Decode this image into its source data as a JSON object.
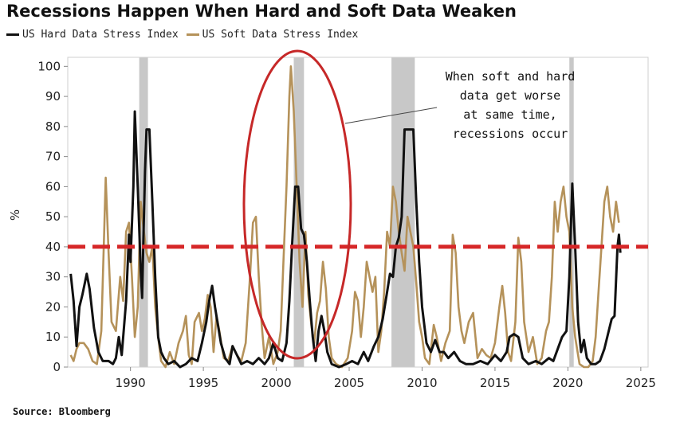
{
  "header": {
    "title": "Recessions Happen When Hard and Soft Data Weaken"
  },
  "source": "Source: Bloomberg",
  "annotation": {
    "lines": [
      "When soft and hard",
      "data get worse",
      "at same time,",
      "recessions occur"
    ]
  },
  "colors": {
    "hard": "#111111",
    "soft": "#b5925a",
    "threshold": "#d62728",
    "ellipse": "#c62828",
    "recession": "#c8c8c8"
  },
  "chart_data": {
    "type": "line",
    "title": "Recessions Happen When Hard and Soft Data Weaken",
    "xlabel": "",
    "ylabel": "%",
    "xlim": [
      1985.7,
      2025.5
    ],
    "ylim": [
      0,
      103
    ],
    "xticks": [
      1990,
      1995,
      2000,
      2005,
      2010,
      2015,
      2020,
      2025
    ],
    "yticks": [
      0,
      10,
      20,
      30,
      40,
      50,
      60,
      70,
      80,
      90,
      100
    ],
    "grid": false,
    "legend_position": "top-left",
    "threshold": 40,
    "recession_bands": [
      [
        1990.6,
        1991.2
      ],
      [
        2001.2,
        2001.9
      ],
      [
        2007.9,
        2009.5
      ],
      [
        2020.1,
        2020.4
      ]
    ],
    "series": [
      {
        "name": "US Hard Data Stress Index",
        "points": [
          [
            1985.9,
            31
          ],
          [
            1986.1,
            22
          ],
          [
            1986.3,
            7
          ],
          [
            1986.5,
            20
          ],
          [
            1986.7,
            24
          ],
          [
            1987.0,
            31
          ],
          [
            1987.2,
            26
          ],
          [
            1987.5,
            13
          ],
          [
            1987.8,
            5
          ],
          [
            1988.1,
            2
          ],
          [
            1988.5,
            2
          ],
          [
            1988.8,
            1
          ],
          [
            1989.0,
            3
          ],
          [
            1989.2,
            10
          ],
          [
            1989.4,
            4
          ],
          [
            1989.7,
            22
          ],
          [
            1989.9,
            44
          ],
          [
            1990.0,
            35
          ],
          [
            1990.2,
            60
          ],
          [
            1990.3,
            85
          ],
          [
            1990.5,
            60
          ],
          [
            1990.7,
            32
          ],
          [
            1990.8,
            23
          ],
          [
            1990.9,
            45
          ],
          [
            1991.0,
            65
          ],
          [
            1991.1,
            79
          ],
          [
            1991.3,
            79
          ],
          [
            1991.5,
            55
          ],
          [
            1991.7,
            30
          ],
          [
            1991.9,
            10
          ],
          [
            1992.1,
            5
          ],
          [
            1992.3,
            3
          ],
          [
            1992.6,
            1
          ],
          [
            1993.0,
            2
          ],
          [
            1993.4,
            0
          ],
          [
            1993.8,
            1
          ],
          [
            1994.2,
            3
          ],
          [
            1994.6,
            2
          ],
          [
            1994.9,
            8
          ],
          [
            1995.2,
            15
          ],
          [
            1995.4,
            22
          ],
          [
            1995.6,
            27
          ],
          [
            1995.8,
            20
          ],
          [
            1996.0,
            14
          ],
          [
            1996.2,
            8
          ],
          [
            1996.5,
            3
          ],
          [
            1996.8,
            1
          ],
          [
            1997.0,
            7
          ],
          [
            1997.3,
            4
          ],
          [
            1997.6,
            1
          ],
          [
            1998.0,
            2
          ],
          [
            1998.4,
            1
          ],
          [
            1998.8,
            3
          ],
          [
            1999.2,
            1
          ],
          [
            1999.5,
            3
          ],
          [
            1999.8,
            8
          ],
          [
            2000.1,
            3
          ],
          [
            2000.4,
            2
          ],
          [
            2000.7,
            8
          ],
          [
            2000.9,
            22
          ],
          [
            2001.1,
            42
          ],
          [
            2001.3,
            60
          ],
          [
            2001.5,
            60
          ],
          [
            2001.7,
            46
          ],
          [
            2001.9,
            44
          ],
          [
            2002.1,
            35
          ],
          [
            2002.3,
            22
          ],
          [
            2002.5,
            10
          ],
          [
            2002.7,
            2
          ],
          [
            2002.9,
            12
          ],
          [
            2003.1,
            17
          ],
          [
            2003.3,
            12
          ],
          [
            2003.5,
            5
          ],
          [
            2003.8,
            1
          ],
          [
            2004.3,
            0
          ],
          [
            2004.8,
            1
          ],
          [
            2005.2,
            2
          ],
          [
            2005.6,
            1
          ],
          [
            2006.0,
            5
          ],
          [
            2006.3,
            2
          ],
          [
            2006.7,
            7
          ],
          [
            2007.0,
            10
          ],
          [
            2007.3,
            16
          ],
          [
            2007.6,
            25
          ],
          [
            2007.8,
            31
          ],
          [
            2008.0,
            30
          ],
          [
            2008.2,
            40
          ],
          [
            2008.4,
            43
          ],
          [
            2008.6,
            50
          ],
          [
            2008.8,
            79
          ],
          [
            2009.0,
            79
          ],
          [
            2009.2,
            79
          ],
          [
            2009.4,
            79
          ],
          [
            2009.6,
            55
          ],
          [
            2009.8,
            35
          ],
          [
            2010.0,
            20
          ],
          [
            2010.3,
            8
          ],
          [
            2010.6,
            5
          ],
          [
            2010.9,
            9
          ],
          [
            2011.2,
            5
          ],
          [
            2011.5,
            5
          ],
          [
            2011.8,
            3
          ],
          [
            2012.2,
            5
          ],
          [
            2012.6,
            2
          ],
          [
            2013.0,
            1
          ],
          [
            2013.5,
            1
          ],
          [
            2014.0,
            2
          ],
          [
            2014.5,
            1
          ],
          [
            2015.0,
            4
          ],
          [
            2015.4,
            2
          ],
          [
            2015.8,
            5
          ],
          [
            2016.0,
            10
          ],
          [
            2016.3,
            11
          ],
          [
            2016.6,
            10
          ],
          [
            2016.9,
            3
          ],
          [
            2017.3,
            1
          ],
          [
            2017.8,
            2
          ],
          [
            2018.2,
            1
          ],
          [
            2018.7,
            3
          ],
          [
            2019.0,
            2
          ],
          [
            2019.3,
            6
          ],
          [
            2019.6,
            10
          ],
          [
            2019.9,
            12
          ],
          [
            2020.1,
            30
          ],
          [
            2020.3,
            61
          ],
          [
            2020.5,
            40
          ],
          [
            2020.7,
            15
          ],
          [
            2020.9,
            5
          ],
          [
            2021.1,
            9
          ],
          [
            2021.3,
            3
          ],
          [
            2021.6,
            1
          ],
          [
            2021.9,
            1
          ],
          [
            2022.2,
            2
          ],
          [
            2022.5,
            6
          ],
          [
            2022.8,
            12
          ],
          [
            2023.0,
            16
          ],
          [
            2023.2,
            17
          ],
          [
            2023.4,
            40
          ],
          [
            2023.5,
            44
          ],
          [
            2023.6,
            38
          ]
        ]
      },
      {
        "name": "US Soft Data Stress Index",
        "points": [
          [
            1985.9,
            4
          ],
          [
            1986.1,
            2
          ],
          [
            1986.3,
            6
          ],
          [
            1986.5,
            8
          ],
          [
            1986.8,
            8
          ],
          [
            1987.1,
            6
          ],
          [
            1987.4,
            2
          ],
          [
            1987.7,
            1
          ],
          [
            1988.0,
            12
          ],
          [
            1988.2,
            45
          ],
          [
            1988.3,
            63
          ],
          [
            1988.5,
            38
          ],
          [
            1988.7,
            15
          ],
          [
            1989.0,
            12
          ],
          [
            1989.3,
            30
          ],
          [
            1989.5,
            22
          ],
          [
            1989.7,
            45
          ],
          [
            1989.9,
            48
          ],
          [
            1990.1,
            30
          ],
          [
            1990.3,
            10
          ],
          [
            1990.5,
            20
          ],
          [
            1990.7,
            55
          ],
          [
            1990.9,
            46
          ],
          [
            1991.1,
            38
          ],
          [
            1991.3,
            35
          ],
          [
            1991.5,
            40
          ],
          [
            1991.7,
            20
          ],
          [
            1991.9,
            10
          ],
          [
            1992.1,
            2
          ],
          [
            1992.4,
            0
          ],
          [
            1992.7,
            5
          ],
          [
            1993.0,
            1
          ],
          [
            1993.3,
            8
          ],
          [
            1993.6,
            12
          ],
          [
            1993.8,
            17
          ],
          [
            1994.0,
            4
          ],
          [
            1994.2,
            1
          ],
          [
            1994.4,
            15
          ],
          [
            1994.7,
            18
          ],
          [
            1994.9,
            12
          ],
          [
            1995.1,
            16
          ],
          [
            1995.3,
            24
          ],
          [
            1995.5,
            20
          ],
          [
            1995.7,
            5
          ],
          [
            1995.9,
            17
          ],
          [
            1996.1,
            12
          ],
          [
            1996.4,
            3
          ],
          [
            1996.7,
            2
          ],
          [
            1997.0,
            7
          ],
          [
            1997.3,
            4
          ],
          [
            1997.6,
            2
          ],
          [
            1997.9,
            8
          ],
          [
            1998.2,
            30
          ],
          [
            1998.4,
            48
          ],
          [
            1998.6,
            50
          ],
          [
            1998.8,
            30
          ],
          [
            1999.0,
            14
          ],
          [
            1999.2,
            3
          ],
          [
            1999.5,
            10
          ],
          [
            1999.8,
            1
          ],
          [
            2000.1,
            5
          ],
          [
            2000.3,
            12
          ],
          [
            2000.5,
            36
          ],
          [
            2000.7,
            60
          ],
          [
            2000.9,
            90
          ],
          [
            2001.0,
            100
          ],
          [
            2001.2,
            85
          ],
          [
            2001.4,
            60
          ],
          [
            2001.6,
            35
          ],
          [
            2001.8,
            20
          ],
          [
            2002.0,
            45
          ],
          [
            2002.2,
            24
          ],
          [
            2002.4,
            14
          ],
          [
            2002.6,
            8
          ],
          [
            2002.8,
            18
          ],
          [
            2003.0,
            22
          ],
          [
            2003.2,
            35
          ],
          [
            2003.4,
            26
          ],
          [
            2003.6,
            10
          ],
          [
            2003.8,
            3
          ],
          [
            2004.1,
            1
          ],
          [
            2004.5,
            0
          ],
          [
            2004.9,
            3
          ],
          [
            2005.2,
            12
          ],
          [
            2005.4,
            25
          ],
          [
            2005.6,
            22
          ],
          [
            2005.8,
            10
          ],
          [
            2006.0,
            20
          ],
          [
            2006.2,
            35
          ],
          [
            2006.4,
            30
          ],
          [
            2006.6,
            25
          ],
          [
            2006.8,
            30
          ],
          [
            2007.0,
            5
          ],
          [
            2007.2,
            12
          ],
          [
            2007.4,
            25
          ],
          [
            2007.6,
            45
          ],
          [
            2007.8,
            40
          ],
          [
            2008.0,
            60
          ],
          [
            2008.2,
            55
          ],
          [
            2008.4,
            45
          ],
          [
            2008.6,
            38
          ],
          [
            2008.8,
            32
          ],
          [
            2009.0,
            50
          ],
          [
            2009.2,
            45
          ],
          [
            2009.4,
            40
          ],
          [
            2009.6,
            28
          ],
          [
            2009.8,
            15
          ],
          [
            2010.0,
            10
          ],
          [
            2010.2,
            3
          ],
          [
            2010.5,
            1
          ],
          [
            2010.8,
            14
          ],
          [
            2011.0,
            10
          ],
          [
            2011.3,
            2
          ],
          [
            2011.6,
            8
          ],
          [
            2011.9,
            12
          ],
          [
            2012.1,
            44
          ],
          [
            2012.3,
            38
          ],
          [
            2012.5,
            20
          ],
          [
            2012.7,
            12
          ],
          [
            2012.9,
            8
          ],
          [
            2013.2,
            15
          ],
          [
            2013.5,
            18
          ],
          [
            2013.8,
            3
          ],
          [
            2014.1,
            6
          ],
          [
            2014.4,
            4
          ],
          [
            2014.7,
            3
          ],
          [
            2015.0,
            8
          ],
          [
            2015.3,
            20
          ],
          [
            2015.5,
            27
          ],
          [
            2015.7,
            18
          ],
          [
            2015.9,
            5
          ],
          [
            2016.1,
            2
          ],
          [
            2016.4,
            15
          ],
          [
            2016.6,
            43
          ],
          [
            2016.8,
            35
          ],
          [
            2017.0,
            15
          ],
          [
            2017.3,
            5
          ],
          [
            2017.6,
            10
          ],
          [
            2017.9,
            1
          ],
          [
            2018.2,
            3
          ],
          [
            2018.5,
            12
          ],
          [
            2018.7,
            15
          ],
          [
            2018.9,
            30
          ],
          [
            2019.1,
            55
          ],
          [
            2019.3,
            45
          ],
          [
            2019.5,
            55
          ],
          [
            2019.7,
            60
          ],
          [
            2019.9,
            50
          ],
          [
            2020.1,
            45
          ],
          [
            2020.3,
            20
          ],
          [
            2020.5,
            10
          ],
          [
            2020.8,
            1
          ],
          [
            2021.1,
            0
          ],
          [
            2021.4,
            0
          ],
          [
            2021.7,
            2
          ],
          [
            2021.9,
            10
          ],
          [
            2022.1,
            25
          ],
          [
            2022.3,
            40
          ],
          [
            2022.5,
            55
          ],
          [
            2022.7,
            60
          ],
          [
            2022.9,
            50
          ],
          [
            2023.1,
            45
          ],
          [
            2023.3,
            55
          ],
          [
            2023.5,
            48
          ]
        ]
      }
    ]
  }
}
